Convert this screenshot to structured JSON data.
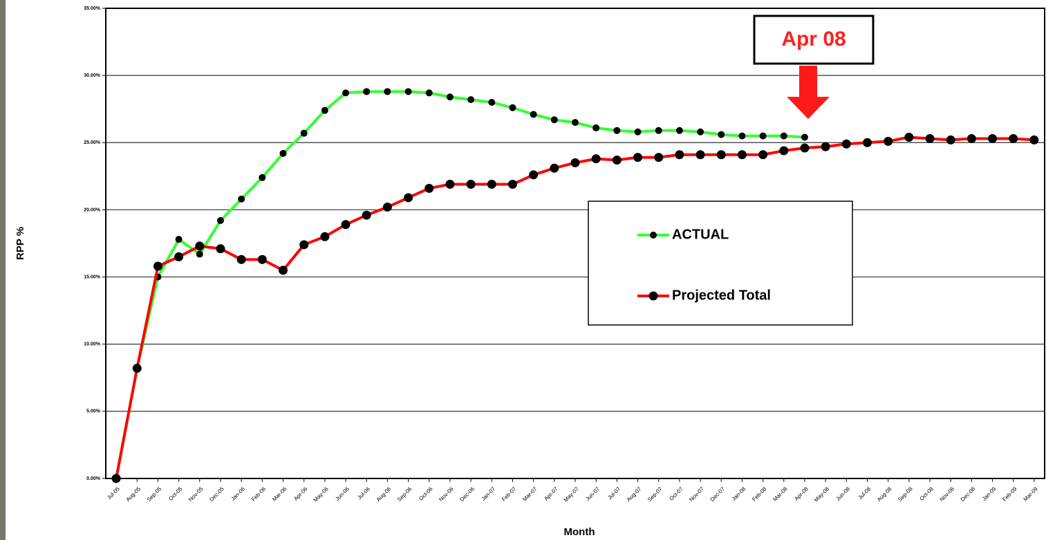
{
  "chart_data": {
    "type": "line",
    "x_label": "Month",
    "y_label": "RPP %",
    "annotation": "Apr 08",
    "categories": [
      "Jul-05",
      "Aug-05",
      "Sep-05",
      "Oct-05",
      "Nov-05",
      "Dec-05",
      "Jan-06",
      "Feb-06",
      "Mar-06",
      "Apr-06",
      "May-06",
      "Jun-06",
      "Jul-06",
      "Aug-06",
      "Sep-06",
      "Oct-06",
      "Nov-06",
      "Dec-06",
      "Jan-07",
      "Feb-07",
      "Mar-07",
      "Apr-07",
      "May-07",
      "Jun-07",
      "Jul-07",
      "Aug-07",
      "Sep-07",
      "Oct-07",
      "Nov-07",
      "Dec-07",
      "Jan-08",
      "Feb-08",
      "Mar-08",
      "Apr-08",
      "May-08",
      "Jun-08",
      "Jul-08",
      "Aug-08",
      "Sep-08",
      "Oct-08",
      "Nov-08",
      "Dec-08",
      "Jan-09",
      "Feb-09",
      "Mar-09"
    ],
    "series": [
      {
        "name": "ACTUAL",
        "color": "#33ff33",
        "values": [
          0,
          8.2,
          15.0,
          17.8,
          16.7,
          19.2,
          20.8,
          22.4,
          24.2,
          25.7,
          27.4,
          28.7,
          28.8,
          28.8,
          28.8,
          28.7,
          28.4,
          28.2,
          28.0,
          27.6,
          27.1,
          26.7,
          26.5,
          26.1,
          25.9,
          25.8,
          25.9,
          25.9,
          25.8,
          25.6,
          25.5,
          25.5,
          25.5,
          25.4,
          null,
          null,
          null,
          null,
          null,
          null,
          null,
          null,
          null,
          null,
          null
        ]
      },
      {
        "name": "Projected Total",
        "color": "#ff0000",
        "values": [
          0,
          8.2,
          15.8,
          16.5,
          17.3,
          17.1,
          16.3,
          16.3,
          15.5,
          17.4,
          18.0,
          18.9,
          19.6,
          20.2,
          20.9,
          21.6,
          21.9,
          21.9,
          21.9,
          21.9,
          22.6,
          23.1,
          23.5,
          23.8,
          23.7,
          23.9,
          23.9,
          24.1,
          24.1,
          24.1,
          24.1,
          24.1,
          24.4,
          24.6,
          24.7,
          24.9,
          25.0,
          25.1,
          25.4,
          25.3,
          25.2,
          25.3,
          25.3,
          25.3,
          25.2
        ]
      }
    ],
    "marker_color": "#000000",
    "ylim": [
      0,
      35
    ],
    "yticks": [
      {
        "value": 0,
        "label": "0.00%"
      },
      {
        "value": 5,
        "label": "5.00%"
      },
      {
        "value": 10,
        "label": "10.00%"
      },
      {
        "value": 15,
        "label": "15.00%"
      },
      {
        "value": 20,
        "label": "20.00%"
      },
      {
        "value": 25,
        "label": "25.00%"
      },
      {
        "value": 30,
        "label": "30.00%"
      },
      {
        "value": 35,
        "label": "35.00%"
      }
    ],
    "grid": true
  }
}
